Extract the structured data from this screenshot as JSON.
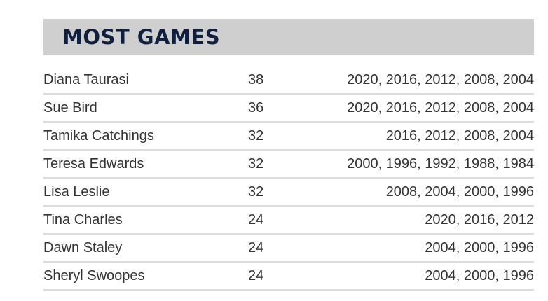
{
  "header": {
    "title": "MOST GAMES"
  },
  "table": {
    "rows": [
      {
        "name": "Diana Taurasi",
        "games": "38",
        "years": "2020, 2016, 2012, 2008, 2004"
      },
      {
        "name": "Sue Bird",
        "games": "36",
        "years": "2020, 2016, 2012, 2008, 2004"
      },
      {
        "name": "Tamika Catchings",
        "games": "32",
        "years": "2016, 2012, 2008, 2004"
      },
      {
        "name": "Teresa Edwards",
        "games": "32",
        "years": "2000, 1996, 1992, 1988, 1984"
      },
      {
        "name": "Lisa Leslie",
        "games": "32",
        "years": "2008, 2004, 2000, 1996"
      },
      {
        "name": "Tina Charles",
        "games": "24",
        "years": "2020, 2016, 2012"
      },
      {
        "name": "Dawn Staley",
        "games": "24",
        "years": "2004, 2000, 1996"
      },
      {
        "name": "Sheryl Swoopes",
        "games": "24",
        "years": "2004, 2000, 1996"
      }
    ]
  },
  "colors": {
    "header_bg": "#cfcfcf",
    "title": "#0f1f3d",
    "text": "#333333",
    "divider": "#dcdcdc"
  }
}
